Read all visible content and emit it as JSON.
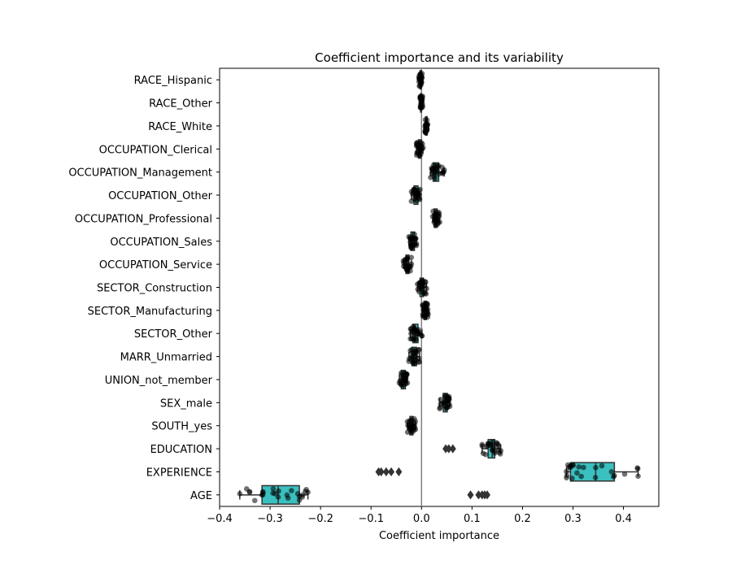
{
  "chart_data": {
    "type": "box",
    "title": "Coefficient importance and its variability",
    "xlabel": "Coefficient importance",
    "ylabel": "",
    "xlim": [
      -0.4,
      0.47
    ],
    "xticks": [
      -0.4,
      -0.3,
      -0.2,
      -0.1,
      0.0,
      0.1,
      0.2,
      0.3,
      0.4
    ],
    "xtick_labels": [
      "−0.4",
      "−0.3",
      "−0.2",
      "−0.1",
      "0.0",
      "0.1",
      "0.2",
      "0.3",
      "0.4"
    ],
    "zero_line": 0.0,
    "categories": [
      "RACE_Hispanic",
      "RACE_Other",
      "RACE_White",
      "OCCUPATION_Clerical",
      "OCCUPATION_Management",
      "OCCUPATION_Other",
      "OCCUPATION_Professional",
      "OCCUPATION_Sales",
      "OCCUPATION_Service",
      "SECTOR_Construction",
      "SECTOR_Manufacturing",
      "SECTOR_Other",
      "MARR_Unmarried",
      "UNION_not_member",
      "SEX_male",
      "SOUTH_yes",
      "EDUCATION",
      "EXPERIENCE",
      "AGE"
    ],
    "boxes": [
      {
        "min": -0.005,
        "q1": -0.003,
        "median": -0.002,
        "q3": 0.0,
        "max": 0.001,
        "fliers": []
      },
      {
        "min": -0.003,
        "q1": -0.002,
        "median": -0.001,
        "q3": 0.0,
        "max": 0.002,
        "fliers": []
      },
      {
        "min": 0.007,
        "q1": 0.008,
        "median": 0.009,
        "q3": 0.011,
        "max": 0.012,
        "fliers": []
      },
      {
        "min": -0.01,
        "q1": -0.006,
        "median": -0.004,
        "q3": -0.001,
        "max": 0.003,
        "fliers": []
      },
      {
        "min": 0.018,
        "q1": 0.023,
        "median": 0.027,
        "q3": 0.034,
        "max": 0.045,
        "fliers": []
      },
      {
        "min": -0.02,
        "q1": -0.015,
        "median": -0.011,
        "q3": -0.007,
        "max": -0.003,
        "fliers": []
      },
      {
        "min": 0.022,
        "q1": 0.025,
        "median": 0.028,
        "q3": 0.031,
        "max": 0.036,
        "fliers": []
      },
      {
        "min": -0.025,
        "q1": -0.021,
        "median": -0.018,
        "q3": -0.014,
        "max": -0.01,
        "fliers": []
      },
      {
        "min": -0.036,
        "q1": -0.031,
        "median": -0.028,
        "q3": -0.025,
        "max": -0.02,
        "fliers": []
      },
      {
        "min": -0.008,
        "q1": -0.003,
        "median": 0.001,
        "q3": 0.004,
        "max": 0.01,
        "fliers": []
      },
      {
        "min": 0.002,
        "q1": 0.005,
        "median": 0.007,
        "q3": 0.01,
        "max": 0.013,
        "fliers": []
      },
      {
        "min": -0.022,
        "q1": -0.017,
        "median": -0.013,
        "q3": -0.007,
        "max": 0.001,
        "fliers": []
      },
      {
        "min": -0.025,
        "q1": -0.019,
        "median": -0.014,
        "q3": -0.01,
        "max": -0.004,
        "fliers": []
      },
      {
        "min": -0.044,
        "q1": -0.04,
        "median": -0.036,
        "q3": -0.032,
        "max": -0.028,
        "fliers": []
      },
      {
        "min": 0.036,
        "q1": 0.043,
        "median": 0.047,
        "q3": 0.051,
        "max": 0.056,
        "fliers": []
      },
      {
        "min": -0.028,
        "q1": -0.023,
        "median": -0.02,
        "q3": -0.017,
        "max": -0.012,
        "fliers": []
      },
      {
        "min": 0.12,
        "q1": 0.132,
        "median": 0.14,
        "q3": 0.145,
        "max": 0.157,
        "fliers": [
          0.048,
          0.054,
          0.062
        ]
      },
      {
        "min": 0.287,
        "q1": 0.295,
        "median": 0.345,
        "q3": 0.382,
        "max": 0.429,
        "fliers": [
          -0.085,
          -0.08,
          -0.07,
          -0.06,
          -0.045
        ]
      },
      {
        "min": -0.36,
        "q1": -0.316,
        "median": -0.284,
        "q3": -0.242,
        "max": -0.225,
        "fliers": [
          0.097,
          0.113,
          0.12,
          0.125,
          0.13
        ]
      }
    ],
    "box_color": "#3bbfbf",
    "point_color": "#000000",
    "grid": false,
    "legend": "none"
  }
}
